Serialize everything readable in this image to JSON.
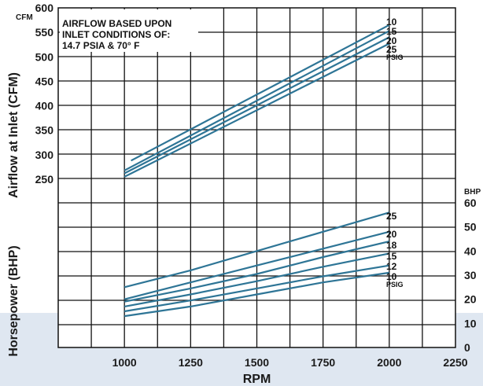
{
  "chart_data": [
    {
      "type": "line",
      "panel": "upper",
      "ylabel": "Airflow at Inlet (CFM)",
      "yunit": "CFM",
      "ylim": [
        250,
        600
      ],
      "yticks": [
        250,
        300,
        350,
        400,
        450,
        500,
        550,
        600
      ],
      "xlabel": "RPM",
      "xlim": [
        750,
        2250
      ],
      "xticks": [
        1000,
        1250,
        1500,
        1750,
        2000,
        2250
      ],
      "grid": true,
      "annotation": [
        "AIRFLOW BASED UPON",
        "INLET CONDITIONS OF:",
        "14.7 PSIA & 70° F"
      ],
      "label_unit": "PSIG",
      "series": [
        {
          "name": "10",
          "x": [
            1025,
            2000
          ],
          "values": [
            288,
            565
          ]
        },
        {
          "name": "15",
          "x": [
            1000,
            2000
          ],
          "values": [
            268,
            553
          ]
        },
        {
          "name": "20",
          "x": [
            1000,
            2000
          ],
          "values": [
            262,
            540
          ]
        },
        {
          "name": "25",
          "x": [
            1000,
            2000
          ],
          "values": [
            255,
            527
          ]
        }
      ]
    },
    {
      "type": "line",
      "panel": "lower",
      "ylabel": "Horsepower (BHP)",
      "yunit": "BHP",
      "ylim": [
        0,
        60
      ],
      "yticks": [
        0,
        10,
        20,
        30,
        40,
        50,
        60
      ],
      "xlabel": "RPM",
      "xlim": [
        750,
        2250
      ],
      "xticks": [
        1000,
        1250,
        1500,
        1750,
        2000,
        2250
      ],
      "grid": true,
      "label_unit": "PSIG",
      "series": [
        {
          "name": "25",
          "x": [
            1000,
            1250,
            1500,
            1750,
            2000
          ],
          "values": [
            25,
            32,
            40,
            48,
            56
          ]
        },
        {
          "name": "20",
          "x": [
            1000,
            1250,
            1500,
            1750,
            2000
          ],
          "values": [
            20,
            27,
            34,
            41,
            48
          ]
        },
        {
          "name": "18",
          "x": [
            1000,
            1250,
            1500,
            1750,
            2000
          ],
          "values": [
            19,
            24.5,
            30.5,
            37.5,
            44
          ]
        },
        {
          "name": "15",
          "x": [
            1000,
            1250,
            1500,
            1750,
            2000
          ],
          "values": [
            17,
            22,
            27.5,
            33.5,
            39
          ]
        },
        {
          "name": "12",
          "x": [
            1000,
            1250,
            1500,
            1750,
            2000
          ],
          "values": [
            15,
            19.5,
            24.5,
            29.5,
            34
          ]
        },
        {
          "name": "10",
          "x": [
            1000,
            1250,
            1500,
            1750,
            2000
          ],
          "values": [
            13,
            17,
            22,
            27,
            31
          ]
        }
      ]
    }
  ],
  "colors": {
    "line": "#2e7596",
    "grid": "#111111",
    "band": "#dfe7f1"
  }
}
